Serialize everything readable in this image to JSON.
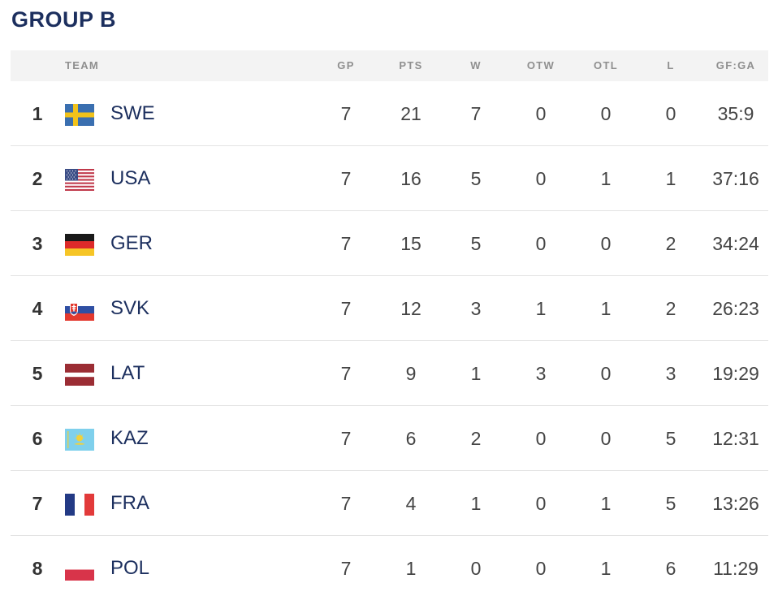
{
  "title": "GROUP B",
  "headers": {
    "team": "TEAM",
    "gp": "GP",
    "pts": "PTS",
    "w": "W",
    "otw": "OTW",
    "otl": "OTL",
    "l": "L",
    "gfga": "GF:GA"
  },
  "rows": [
    {
      "rank": "1",
      "team": "SWE",
      "flag": "sweden-flag-icon",
      "gp": "7",
      "pts": "21",
      "w": "7",
      "otw": "0",
      "otl": "0",
      "l": "0",
      "gfga": "35:9"
    },
    {
      "rank": "2",
      "team": "USA",
      "flag": "usa-flag-icon",
      "gp": "7",
      "pts": "16",
      "w": "5",
      "otw": "0",
      "otl": "1",
      "l": "1",
      "gfga": "37:16"
    },
    {
      "rank": "3",
      "team": "GER",
      "flag": "germany-flag-icon",
      "gp": "7",
      "pts": "15",
      "w": "5",
      "otw": "0",
      "otl": "0",
      "l": "2",
      "gfga": "34:24"
    },
    {
      "rank": "4",
      "team": "SVK",
      "flag": "slovakia-flag-icon",
      "gp": "7",
      "pts": "12",
      "w": "3",
      "otw": "1",
      "otl": "1",
      "l": "2",
      "gfga": "26:23"
    },
    {
      "rank": "5",
      "team": "LAT",
      "flag": "latvia-flag-icon",
      "gp": "7",
      "pts": "9",
      "w": "1",
      "otw": "3",
      "otl": "0",
      "l": "3",
      "gfga": "19:29"
    },
    {
      "rank": "6",
      "team": "KAZ",
      "flag": "kazakhstan-flag-icon",
      "gp": "7",
      "pts": "6",
      "w": "2",
      "otw": "0",
      "otl": "0",
      "l": "5",
      "gfga": "12:31"
    },
    {
      "rank": "7",
      "team": "FRA",
      "flag": "france-flag-icon",
      "gp": "7",
      "pts": "4",
      "w": "1",
      "otw": "0",
      "otl": "1",
      "l": "5",
      "gfga": "13:26"
    },
    {
      "rank": "8",
      "team": "POL",
      "flag": "poland-flag-icon",
      "gp": "7",
      "pts": "1",
      "w": "0",
      "otw": "0",
      "otl": "1",
      "l": "6",
      "gfga": "11:29"
    }
  ],
  "colors": {
    "title": "#1c2f5e",
    "team": "#1c2f5e",
    "header_bg": "#f3f3f3",
    "header_text": "#8f8f8f",
    "divider": "#e3e3e3"
  }
}
